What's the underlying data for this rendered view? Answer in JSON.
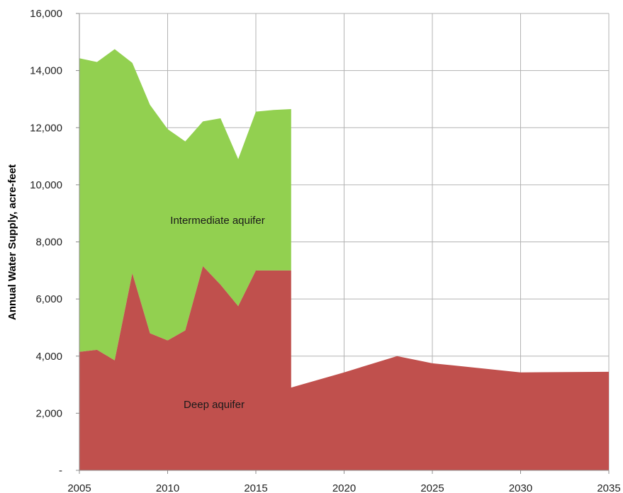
{
  "chart_data": {
    "type": "area",
    "stacked": true,
    "title": "",
    "xlabel": "",
    "ylabel": "Annual Water Supply, acre-feet",
    "xlim": [
      2005,
      2035
    ],
    "ylim": [
      0,
      16000
    ],
    "grid": true,
    "legend": "none",
    "x_ticks": [
      "2005",
      "2010",
      "2015",
      "2020",
      "2025",
      "2030",
      "2035"
    ],
    "y_ticks": [
      "-",
      "2,000",
      "4,000",
      "6,000",
      "8,000",
      "10,000",
      "12,000",
      "14,000",
      "16,000"
    ],
    "series": [
      {
        "label": "Deep aquifer",
        "color": "#c0504d",
        "x": [
          2005,
          2006,
          2007,
          2008,
          2009,
          2010,
          2011,
          2012,
          2013,
          2014,
          2015,
          2016,
          2017,
          2017,
          2020,
          2023,
          2025,
          2030,
          2035
        ],
        "y": [
          4150,
          4220,
          3850,
          6900,
          4800,
          4550,
          4900,
          7150,
          6500,
          5750,
          7000,
          7000,
          7000,
          2900,
          3430,
          4000,
          3750,
          3430,
          3450
        ]
      },
      {
        "label": "Intermediate aquifer",
        "color": "#92d050",
        "x": [
          2005,
          2006,
          2007,
          2008,
          2009,
          2010,
          2011,
          2012,
          2013,
          2014,
          2015,
          2016,
          2017
        ],
        "y": [
          10280,
          10080,
          10900,
          7370,
          8000,
          7400,
          6620,
          5070,
          5830,
          5150,
          5560,
          5620,
          5650
        ]
      }
    ]
  }
}
